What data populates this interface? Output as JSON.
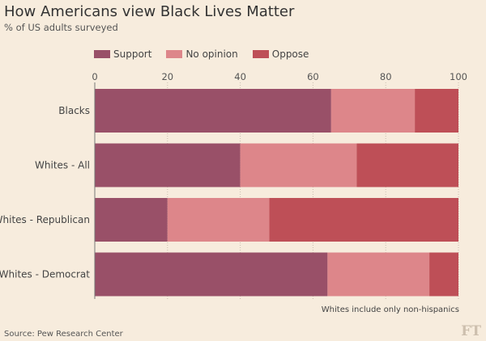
{
  "chart_data": {
    "type": "bar",
    "orientation": "horizontal",
    "stacked": true,
    "title": "How Americans view Black Lives Matter",
    "subtitle": "% of US adults surveyed",
    "categories": [
      "Blacks",
      "Whites - All",
      "Whites - Republican",
      "Whites - Democrat"
    ],
    "series": [
      {
        "name": "Support",
        "color": "#995068",
        "values": [
          65,
          40,
          20,
          64
        ]
      },
      {
        "name": "No opinion",
        "color": "#dd868a",
        "values": [
          23,
          32,
          28,
          28
        ]
      },
      {
        "name": "Oppose",
        "color": "#be4f57",
        "values": [
          12,
          28,
          52,
          8
        ]
      }
    ],
    "xlim": [
      0,
      100
    ],
    "xticks": [
      "0",
      "20",
      "40",
      "60",
      "80",
      "100"
    ],
    "grid": true,
    "legend": "top",
    "note": "Whites include only non-hispanics",
    "source": "Source: Pew Research Center",
    "logo": "FT"
  }
}
